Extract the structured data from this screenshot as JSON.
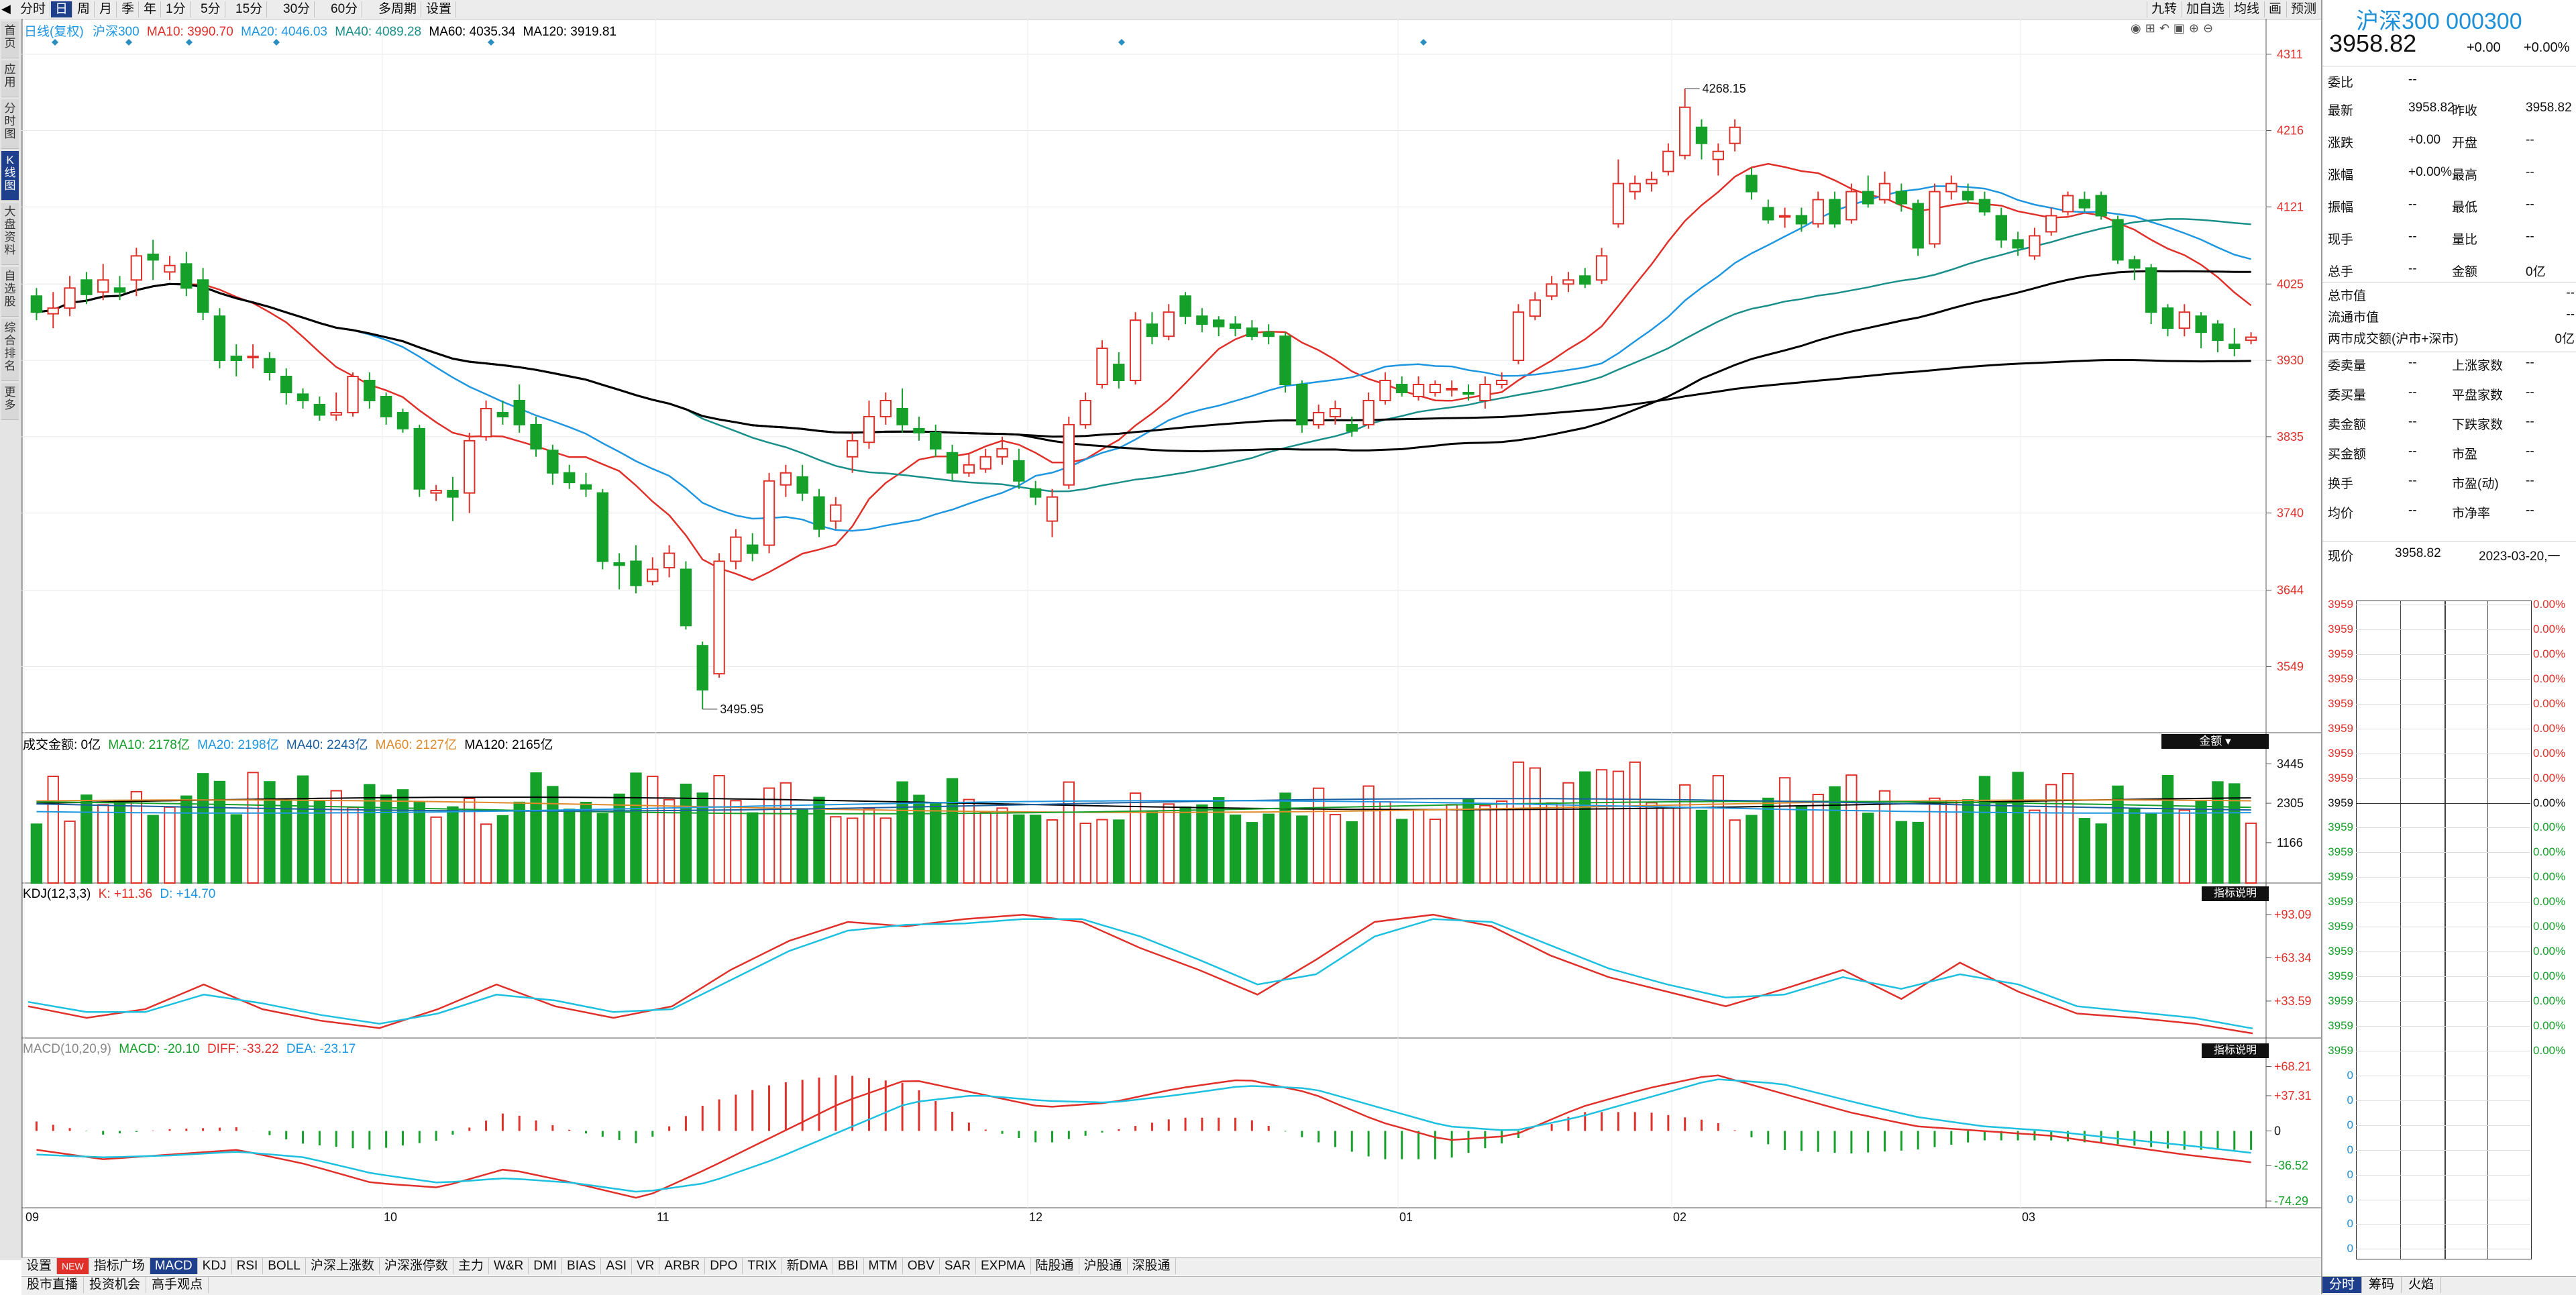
{
  "periods": [
    "分时",
    "日",
    "周",
    "月",
    "季",
    "年",
    "1分",
    "5分",
    "15分",
    "30分",
    "60分",
    "多周期",
    "设置"
  ],
  "period_active": "日",
  "top_right": [
    "九转",
    "加自选",
    "均线",
    "画",
    "预测"
  ],
  "left_nav": [
    {
      "label": "首页",
      "active": false
    },
    {
      "label": "应用",
      "active": false
    },
    {
      "label": "分时图",
      "active": false
    },
    {
      "label": "K线图",
      "active": true
    },
    {
      "label": "大盘资料",
      "active": false
    },
    {
      "label": "自选股",
      "active": false
    },
    {
      "label": "综合排名",
      "active": false
    },
    {
      "label": "更多",
      "active": false
    }
  ],
  "price_legend": {
    "label": "日线(复权)",
    "name": "沪深300",
    "ma10": "MA10: 3990.70",
    "ma20": "MA20: 4046.03",
    "ma40": "MA40: 4089.28",
    "ma60": "MA60: 4035.34",
    "ma120": "MA120: 3919.81"
  },
  "price_axis": [
    "4311",
    "4216",
    "4121",
    "4025",
    "3930",
    "3835",
    "3740",
    "3644",
    "3549"
  ],
  "annotations": {
    "high": "4268.15",
    "low": "3495.95"
  },
  "volume_legend": {
    "label": "成交金额: 0亿",
    "ma10": "MA10: 2178亿",
    "ma20": "MA20: 2198亿",
    "ma40": "MA40: 2243亿",
    "ma60": "MA60: 2127亿",
    "ma120": "MA120: 2165亿",
    "unit_button": "金额"
  },
  "volume_axis": [
    "3445",
    "2305",
    "1166"
  ],
  "kdj_legend": {
    "label": "KDJ(12,3,3)",
    "k": "K: +11.36",
    "d": "D: +14.70",
    "badge": "指标说明"
  },
  "kdj_axis": [
    "+93.09",
    "+63.34",
    "+33.59"
  ],
  "macd_legend": {
    "label": "MACD(10,20,9)",
    "macd": "MACD: -20.10",
    "diff": "DIFF: -33.22",
    "dea": "DEA: -23.17",
    "badge": "指标说明"
  },
  "macd_axis": [
    "+68.21",
    "+37.31",
    "0",
    "-36.52",
    "-74.29"
  ],
  "date_axis": [
    "09",
    "10",
    "11",
    "12",
    "01",
    "02",
    "03"
  ],
  "indicator_tabs": [
    "设置",
    "NEW",
    "指标广场",
    "MACD",
    "KDJ",
    "RSI",
    "BOLL",
    "沪深上涨数",
    "沪深涨停数",
    "主力",
    "W&R",
    "DMI",
    "BIAS",
    "ASI",
    "VR",
    "ARBR",
    "DPO",
    "TRIX",
    "新DMA",
    "BBI",
    "MTM",
    "OBV",
    "SAR",
    "EXPMA",
    "陆股通",
    "沪股通",
    "深股通"
  ],
  "indicator_active": "MACD",
  "bottom_tabs": [
    "股市直播",
    "投资机会",
    "高手观点"
  ],
  "quote": {
    "title": "沪深300 000300",
    "price": "3958.82",
    "change": "+0.00",
    "pct": "+0.00%",
    "rows": [
      [
        [
          "委比",
          "--"
        ],
        [
          "",
          ""
        ]
      ],
      [
        [
          "最新",
          "3958.82"
        ],
        [
          "昨收",
          "3958.82"
        ]
      ],
      [
        [
          "涨跌",
          "+0.00"
        ],
        [
          "开盘",
          "--"
        ]
      ],
      [
        [
          "涨幅",
          "+0.00%"
        ],
        [
          "最高",
          "--"
        ]
      ],
      [
        [
          "振幅",
          "--"
        ],
        [
          "最低",
          "--"
        ]
      ],
      [
        [
          "现手",
          "--"
        ],
        [
          "量比",
          "--"
        ]
      ],
      [
        [
          "总手",
          "--"
        ],
        [
          "金额",
          "0亿"
        ]
      ]
    ],
    "mktcap": [
      [
        "总市值",
        "--"
      ],
      [
        "流通市值",
        "--"
      ],
      [
        "两市成交额(沪市+深市)",
        "0亿"
      ]
    ],
    "stats": [
      [
        [
          "委卖量",
          "--"
        ],
        [
          "上涨家数",
          "--"
        ]
      ],
      [
        [
          "委买量",
          "--"
        ],
        [
          "平盘家数",
          "--"
        ]
      ],
      [
        [
          "卖金额",
          "--"
        ],
        [
          "下跌家数",
          "--"
        ]
      ],
      [
        [
          "买金额",
          "--"
        ],
        [
          "市盈",
          "--"
        ]
      ],
      [
        [
          "换手",
          "--"
        ],
        [
          "市盈(动)",
          "--"
        ]
      ],
      [
        [
          "均价",
          "--"
        ],
        [
          "市净率",
          "--"
        ]
      ]
    ],
    "now_label": "现价",
    "now_price": "3958.82",
    "now_date": "2023-03-20,一",
    "mini_left": [
      "3959",
      "3959",
      "3959",
      "3959",
      "3959",
      "3959",
      "3959",
      "3959",
      "3959",
      "3959",
      "3959",
      "3959",
      "3959",
      "3959",
      "3959",
      "3959",
      "3959",
      "3959",
      "3959",
      "0",
      "0",
      "0",
      "0",
      "0",
      "0",
      "0",
      "0"
    ],
    "mini_right": [
      "0.00%",
      "0.00%",
      "0.00%",
      "0.00%",
      "0.00%",
      "0.00%",
      "0.00%",
      "0.00%",
      "0.00%",
      "0.00%",
      "0.00%",
      "0.00%",
      "0.00%",
      "0.00%",
      "0.00%",
      "0.00%",
      "0.00%",
      "0.00%",
      "0.00%"
    ],
    "bottom_tabs": [
      "分时",
      "筹码",
      "火焰"
    ]
  },
  "colors": {
    "up": "#e0302a",
    "down": "#15a02a",
    "ma10": "#e0302a",
    "ma20": "#1e96e0",
    "ma40": "#1a8f8a",
    "ma60": "#000000",
    "ma120": "#000000",
    "accent": "#1d3f8c"
  },
  "chart_data": {
    "type": "candlestick",
    "title": "沪深300",
    "ylim": [
      3495.95,
      4311
    ],
    "candles": [
      [
        4010,
        3990,
        4020,
        3980
      ],
      [
        3988,
        3995,
        4015,
        3970
      ],
      [
        3995,
        4020,
        4035,
        3985
      ],
      [
        4030,
        4012,
        4040,
        4000
      ],
      [
        4015,
        4030,
        4050,
        4005
      ],
      [
        4020,
        4015,
        4035,
        4005
      ],
      [
        4030,
        4060,
        4070,
        4010
      ],
      [
        4062,
        4055,
        4080,
        4030
      ],
      [
        4040,
        4048,
        4060,
        4030
      ],
      [
        4050,
        4020,
        4065,
        4010
      ],
      [
        4030,
        3990,
        4045,
        3980
      ],
      [
        3985,
        3930,
        3995,
        3920
      ],
      [
        3935,
        3930,
        3950,
        3910
      ],
      [
        3935,
        3935,
        3950,
        3920
      ],
      [
        3932,
        3915,
        3940,
        3905
      ],
      [
        3910,
        3890,
        3920,
        3875
      ],
      [
        3888,
        3880,
        3895,
        3870
      ],
      [
        3875,
        3862,
        3885,
        3855
      ],
      [
        3862,
        3865,
        3890,
        3855
      ],
      [
        3865,
        3910,
        3915,
        3860
      ],
      [
        3905,
        3880,
        3915,
        3870
      ],
      [
        3885,
        3860,
        3890,
        3850
      ],
      [
        3865,
        3845,
        3870,
        3840
      ],
      [
        3845,
        3770,
        3850,
        3760
      ],
      [
        3765,
        3768,
        3775,
        3755
      ],
      [
        3768,
        3760,
        3785,
        3730
      ],
      [
        3765,
        3830,
        3840,
        3740
      ],
      [
        3835,
        3870,
        3880,
        3830
      ],
      [
        3865,
        3860,
        3880,
        3850
      ],
      [
        3880,
        3850,
        3900,
        3840
      ],
      [
        3850,
        3820,
        3860,
        3810
      ],
      [
        3818,
        3790,
        3825,
        3775
      ],
      [
        3790,
        3778,
        3800,
        3770
      ],
      [
        3775,
        3770,
        3790,
        3760
      ],
      [
        3765,
        3680,
        3770,
        3670
      ],
      [
        3678,
        3675,
        3690,
        3645
      ],
      [
        3680,
        3650,
        3700,
        3640
      ],
      [
        3655,
        3670,
        3685,
        3650
      ],
      [
        3672,
        3690,
        3700,
        3660
      ],
      [
        3670,
        3600,
        3680,
        3595
      ],
      [
        3575,
        3520,
        3580,
        3495.95
      ],
      [
        3540,
        3680,
        3690,
        3535
      ],
      [
        3680,
        3710,
        3720,
        3670
      ],
      [
        3700,
        3690,
        3715,
        3680
      ],
      [
        3700,
        3780,
        3790,
        3690
      ],
      [
        3775,
        3790,
        3800,
        3760
      ],
      [
        3785,
        3765,
        3800,
        3755
      ],
      [
        3760,
        3720,
        3770,
        3710
      ],
      [
        3730,
        3750,
        3760,
        3720
      ],
      [
        3810,
        3830,
        3840,
        3790
      ],
      [
        3828,
        3860,
        3880,
        3820
      ],
      [
        3860,
        3880,
        3890,
        3850
      ],
      [
        3870,
        3850,
        3895,
        3840
      ],
      [
        3845,
        3840,
        3860,
        3830
      ],
      [
        3840,
        3820,
        3850,
        3810
      ],
      [
        3815,
        3790,
        3825,
        3780
      ],
      [
        3790,
        3800,
        3815,
        3785
      ],
      [
        3795,
        3810,
        3820,
        3790
      ],
      [
        3810,
        3820,
        3835,
        3800
      ],
      [
        3805,
        3780,
        3820,
        3770
      ],
      [
        3770,
        3760,
        3780,
        3750
      ],
      [
        3730,
        3760,
        3770,
        3710
      ],
      [
        3775,
        3850,
        3860,
        3770
      ],
      [
        3850,
        3880,
        3890,
        3845
      ],
      [
        3900,
        3945,
        3955,
        3895
      ],
      [
        3925,
        3905,
        3940,
        3895
      ],
      [
        3905,
        3980,
        3990,
        3900
      ],
      [
        3975,
        3960,
        3990,
        3950
      ],
      [
        3960,
        3990,
        4000,
        3955
      ],
      [
        4010,
        3985,
        4015,
        3975
      ],
      [
        3985,
        3975,
        3995,
        3965
      ],
      [
        3980,
        3972,
        3985,
        3960
      ],
      [
        3975,
        3970,
        3985,
        3960
      ],
      [
        3970,
        3960,
        3980,
        3955
      ],
      [
        3965,
        3960,
        3975,
        3950
      ],
      [
        3960,
        3900,
        3965,
        3890
      ],
      [
        3900,
        3850,
        3905,
        3840
      ],
      [
        3850,
        3865,
        3875,
        3845
      ],
      [
        3860,
        3870,
        3880,
        3850
      ],
      [
        3850,
        3842,
        3860,
        3835
      ],
      [
        3850,
        3880,
        3890,
        3845
      ],
      [
        3880,
        3905,
        3915,
        3875
      ],
      [
        3900,
        3890,
        3910,
        3885
      ],
      [
        3885,
        3900,
        3910,
        3880
      ],
      [
        3890,
        3900,
        3905,
        3885
      ],
      [
        3895,
        3895,
        3905,
        3885
      ],
      [
        3890,
        3888,
        3900,
        3880
      ],
      [
        3880,
        3900,
        3910,
        3870
      ],
      [
        3900,
        3905,
        3915,
        3895
      ],
      [
        3930,
        3990,
        4000,
        3925
      ],
      [
        3985,
        4005,
        4015,
        3980
      ],
      [
        4010,
        4025,
        4035,
        4005
      ],
      [
        4025,
        4030,
        4040,
        4015
      ],
      [
        4035,
        4025,
        4045,
        4020
      ],
      [
        4030,
        4060,
        4070,
        4025
      ],
      [
        4100,
        4150,
        4180,
        4095
      ],
      [
        4140,
        4150,
        4160,
        4130
      ],
      [
        4150,
        4155,
        4165,
        4140
      ],
      [
        4165,
        4190,
        4200,
        4160
      ],
      [
        4185,
        4245,
        4268.15,
        4180
      ],
      [
        4220,
        4200,
        4230,
        4180
      ],
      [
        4180,
        4190,
        4200,
        4160
      ],
      [
        4200,
        4220,
        4230,
        4190
      ],
      [
        4160,
        4140,
        4170,
        4130
      ],
      [
        4120,
        4105,
        4130,
        4100
      ],
      [
        4110,
        4110,
        4120,
        4095
      ],
      [
        4110,
        4100,
        4120,
        4090
      ],
      [
        4100,
        4130,
        4140,
        4095
      ],
      [
        4130,
        4100,
        4140,
        4095
      ],
      [
        4105,
        4140,
        4150,
        4100
      ],
      [
        4140,
        4125,
        4160,
        4120
      ],
      [
        4130,
        4150,
        4165,
        4125
      ],
      [
        4140,
        4125,
        4150,
        4115
      ],
      [
        4125,
        4070,
        4130,
        4060
      ],
      [
        4075,
        4140,
        4150,
        4070
      ],
      [
        4140,
        4150,
        4160,
        4130
      ],
      [
        4140,
        4130,
        4150,
        4125
      ],
      [
        4130,
        4115,
        4140,
        4110
      ],
      [
        4110,
        4080,
        4120,
        4070
      ],
      [
        4080,
        4070,
        4090,
        4060
      ],
      [
        4060,
        4085,
        4095,
        4055
      ],
      [
        4090,
        4110,
        4120,
        4085
      ],
      [
        4115,
        4135,
        4140,
        4110
      ],
      [
        4130,
        4120,
        4140,
        4115
      ],
      [
        4135,
        4110,
        4140,
        4105
      ],
      [
        4105,
        4055,
        4110,
        4050
      ],
      [
        4055,
        4045,
        4060,
        4030
      ],
      [
        4045,
        3990,
        4050,
        3975
      ],
      [
        3995,
        3970,
        4000,
        3960
      ],
      [
        3970,
        3990,
        4000,
        3960
      ],
      [
        3985,
        3965,
        3990,
        3945
      ],
      [
        3975,
        3955,
        3980,
        3940
      ],
      [
        3950,
        3945,
        3970,
        3935
      ],
      [
        3955,
        3958.82,
        3965,
        3950
      ]
    ]
  }
}
